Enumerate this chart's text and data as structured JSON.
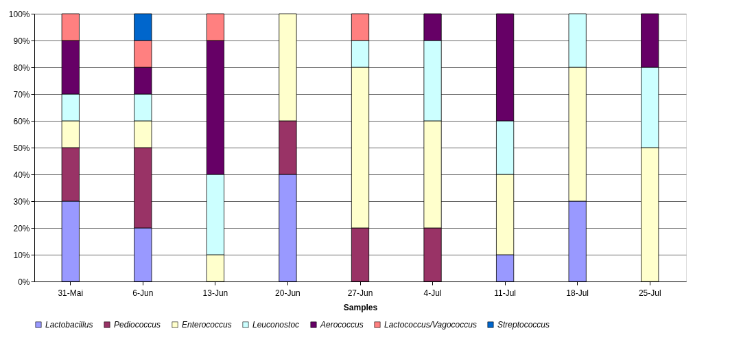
{
  "chart_data": {
    "type": "bar",
    "stacked": true,
    "xlabel": "Samples",
    "categories": [
      "31-Mai",
      "6-Jun",
      "13-Jun",
      "20-Jun",
      "27-Jun",
      "4-Jul",
      "11-Jul",
      "18-Jul",
      "25-Jul"
    ],
    "series": [
      {
        "name": "Lactobacillus",
        "color": "#9999ff",
        "values": [
          30,
          20,
          0,
          40,
          0,
          0,
          10,
          30,
          0
        ]
      },
      {
        "name": "Pediococcus",
        "color": "#993366",
        "values": [
          20,
          30,
          0,
          20,
          20,
          20,
          0,
          0,
          0
        ]
      },
      {
        "name": "Enterococcus",
        "color": "#ffffcc",
        "values": [
          10,
          10,
          10,
          40,
          60,
          40,
          30,
          50,
          50
        ]
      },
      {
        "name": "Leuconostoc",
        "color": "#ccffff",
        "values": [
          10,
          10,
          30,
          0,
          10,
          30,
          20,
          20,
          30
        ]
      },
      {
        "name": "Aerococcus",
        "color": "#660066",
        "values": [
          20,
          10,
          50,
          0,
          0,
          10,
          40,
          0,
          20
        ]
      },
      {
        "name": "Lactococcus/Vagococcus",
        "color": "#ff8080",
        "values": [
          10,
          10,
          10,
          0,
          10,
          0,
          0,
          0,
          0
        ]
      },
      {
        "name": "Streptococcus",
        "color": "#0066cc",
        "values": [
          0,
          10,
          0,
          0,
          0,
          0,
          0,
          0,
          0
        ]
      }
    ],
    "ylim": [
      0,
      100
    ],
    "yticks": [
      {
        "value": 0,
        "label": "0%"
      },
      {
        "value": 10,
        "label": "10%"
      },
      {
        "value": 20,
        "label": "20%"
      },
      {
        "value": 30,
        "label": "30%"
      },
      {
        "value": 40,
        "label": "40%"
      },
      {
        "value": 50,
        "label": "50%"
      },
      {
        "value": 60,
        "label": "60%"
      },
      {
        "value": 70,
        "label": "70%"
      },
      {
        "value": 80,
        "label": "80%"
      },
      {
        "value": 90,
        "label": "90%"
      },
      {
        "value": 100,
        "label": "100%"
      }
    ],
    "grid": "y",
    "legend": "bottom"
  }
}
